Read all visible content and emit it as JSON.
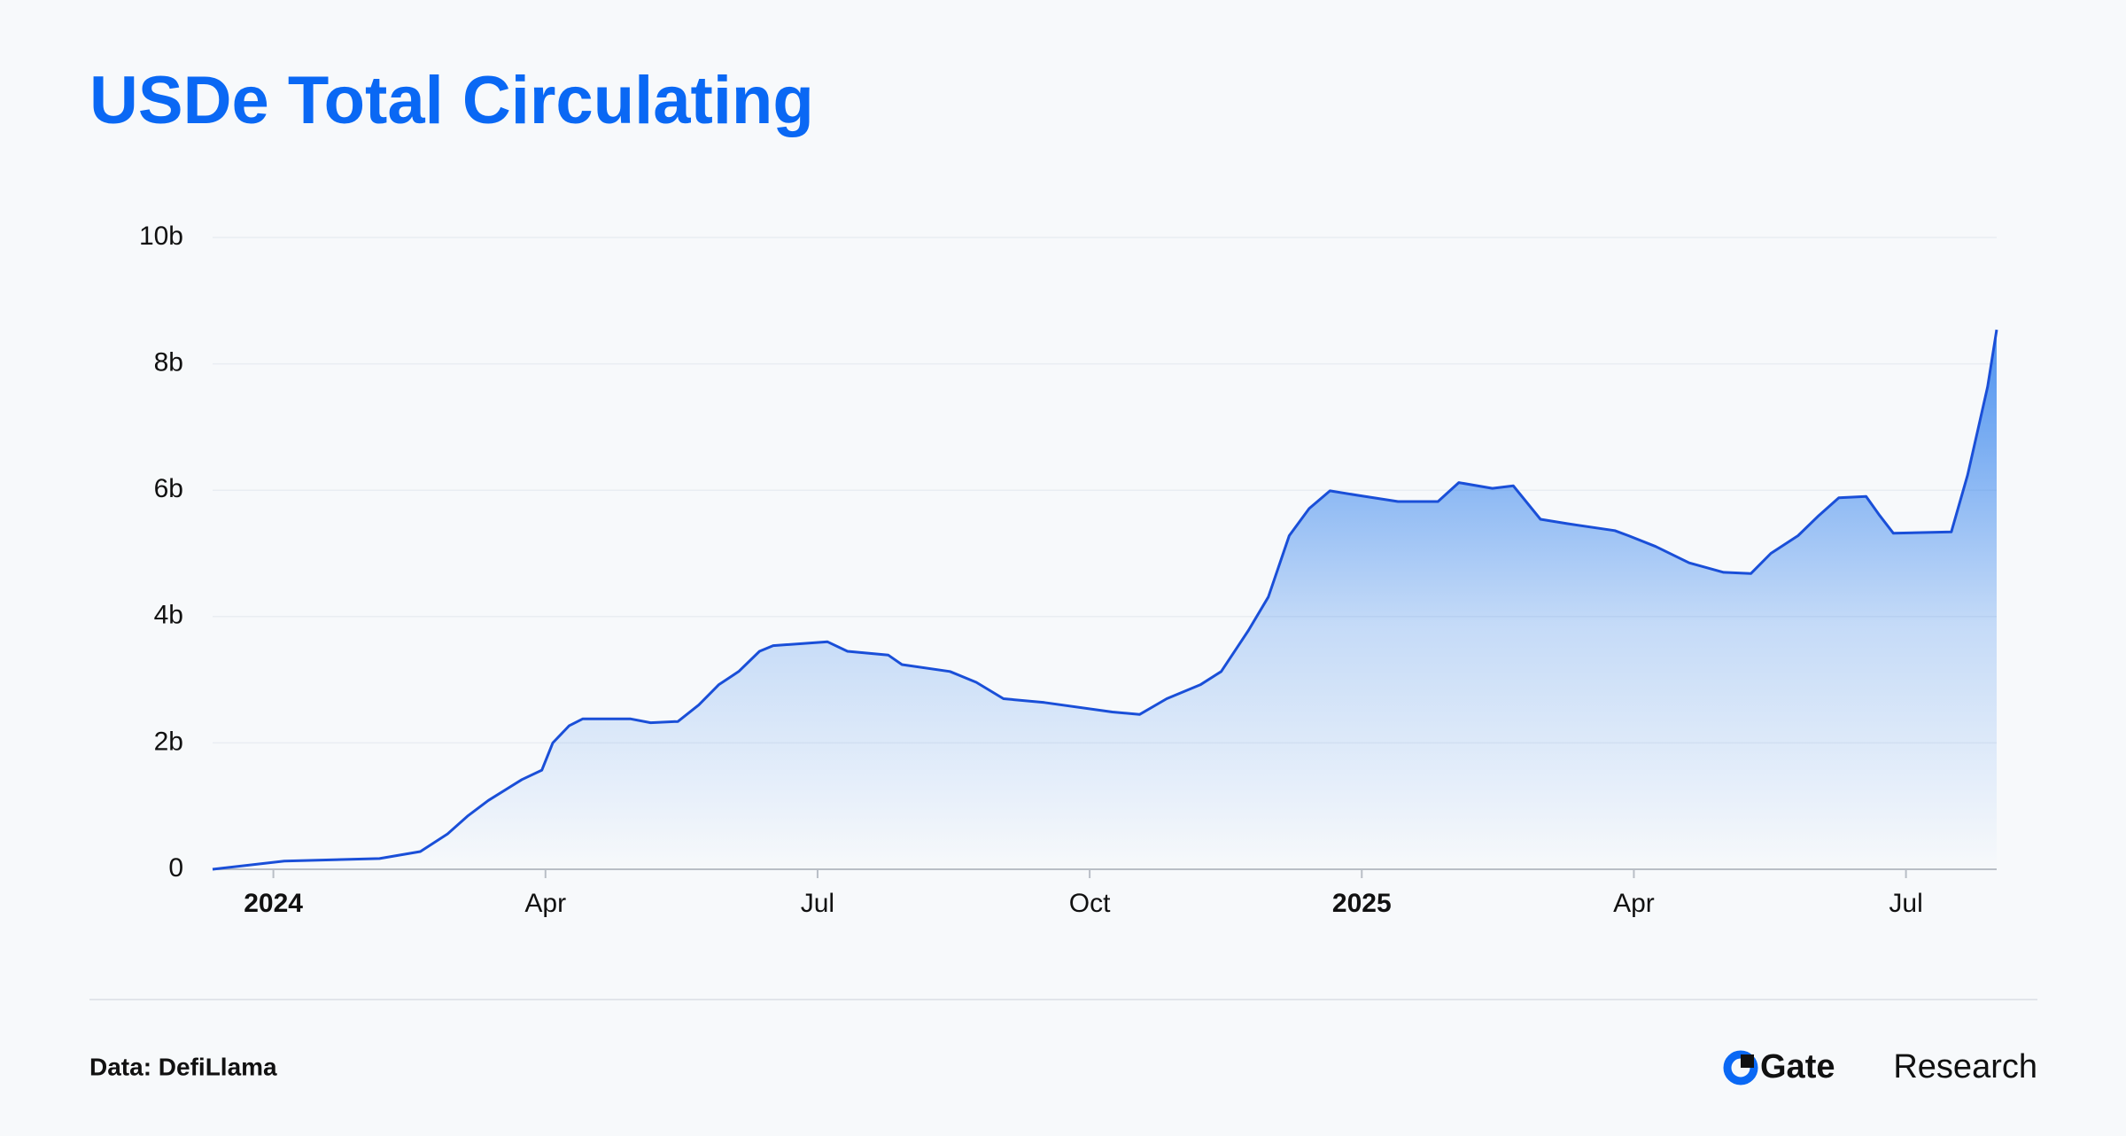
{
  "chart_data": {
    "type": "area",
    "title": "USDe Total Circulating",
    "x": [
      -0.67,
      0.12,
      1.17,
      1.62,
      1.92,
      2.14,
      2.37,
      2.74,
      2.96,
      3.08,
      3.26,
      3.41,
      3.94,
      4.16,
      4.46,
      4.69,
      4.91,
      5.13,
      5.36,
      5.51,
      6.11,
      6.33,
      6.78,
      6.93,
      7.46,
      7.75,
      8.05,
      8.5,
      9.25,
      9.55,
      9.85,
      10.22,
      10.45,
      10.75,
      10.97,
      11.2,
      11.42,
      11.65,
      11.95,
      12.4,
      12.84,
      13.07,
      13.44,
      13.67,
      13.97,
      14.27,
      14.79,
      14.94,
      15.24,
      15.61,
      15.99,
      16.29,
      16.51,
      16.81,
      17.04,
      17.26,
      17.56,
      17.71,
      17.86,
      18.5,
      18.68,
      18.8,
      18.9,
      19.0
    ],
    "series": [
      {
        "name": "USDe",
        "color": "#1a4fd8",
        "values": [
          0,
          0.13,
          0.17,
          0.28,
          0.56,
          0.84,
          1.09,
          1.42,
          1.57,
          2.0,
          2.27,
          2.38,
          2.38,
          2.32,
          2.34,
          2.6,
          2.92,
          3.13,
          3.45,
          3.54,
          3.6,
          3.45,
          3.39,
          3.24,
          3.13,
          2.96,
          2.7,
          2.64,
          2.49,
          2.45,
          2.7,
          2.92,
          3.13,
          3.78,
          4.31,
          5.28,
          5.71,
          5.99,
          5.92,
          5.82,
          5.82,
          6.12,
          6.03,
          6.07,
          5.54,
          5.47,
          5.36,
          5.28,
          5.11,
          4.85,
          4.7,
          4.68,
          5.0,
          5.28,
          5.6,
          5.88,
          5.9,
          5.6,
          5.32,
          5.34,
          6.24,
          7.0,
          7.64,
          8.54
        ]
      }
    ],
    "xlim": [
      -0.67,
      19.0
    ],
    "xticks": [
      {
        "value": 0,
        "label": "2024"
      },
      {
        "value": 3,
        "label": "Apr"
      },
      {
        "value": 6,
        "label": "Jul"
      },
      {
        "value": 9,
        "label": "Oct"
      },
      {
        "value": 12,
        "label": "2025"
      },
      {
        "value": 15,
        "label": "Apr"
      },
      {
        "value": 18,
        "label": "Jul"
      }
    ],
    "ylim": [
      0,
      10
    ],
    "yticks": [
      0,
      {
        "value": 2,
        "label": "2b"
      },
      {
        "value": 4,
        "label": "4b"
      },
      {
        "value": 6,
        "label": "6b"
      },
      {
        "value": 8,
        "label": "8b"
      },
      {
        "value": 10,
        "label": "10b"
      }
    ],
    "grid": true
  },
  "footer": {
    "source": "Data: DefiLlama",
    "brand": "Gate",
    "brand_suffix": "Research"
  }
}
